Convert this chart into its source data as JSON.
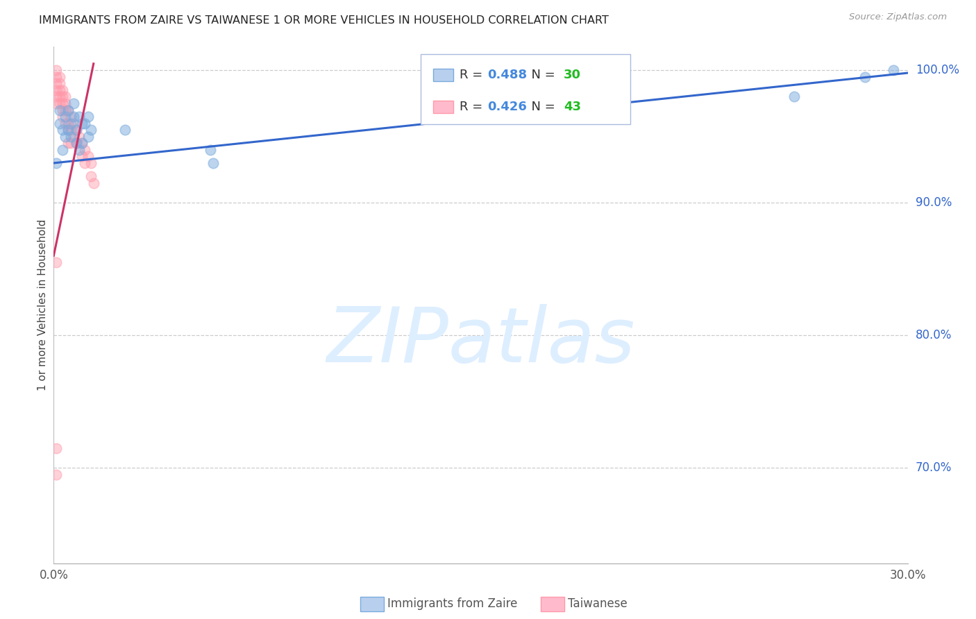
{
  "title": "IMMIGRANTS FROM ZAIRE VS TAIWANESE 1 OR MORE VEHICLES IN HOUSEHOLD CORRELATION CHART",
  "source": "Source: ZipAtlas.com",
  "ylabel": "1 or more Vehicles in Household",
  "xmin": 0.0,
  "xmax": 0.3,
  "ymin": 0.628,
  "ymax": 1.018,
  "yticks": [
    0.7,
    0.8,
    0.9,
    1.0
  ],
  "ytick_labels": [
    "70.0%",
    "80.0%",
    "90.0%",
    "100.0%"
  ],
  "xtick_positions": [
    0.0,
    0.05,
    0.1,
    0.15,
    0.2,
    0.25,
    0.3
  ],
  "xtick_labels": [
    "0.0%",
    "",
    "",
    "",
    "",
    "",
    "30.0%"
  ],
  "grid_color": "#cccccc",
  "background_color": "#ffffff",
  "blue_color": "#7aaadd",
  "pink_color": "#ff99aa",
  "blue_label": "Immigrants from Zaire",
  "pink_label": "Taiwanese",
  "blue_R": 0.488,
  "blue_N": 30,
  "pink_R": 0.426,
  "pink_N": 43,
  "legend_R_color": "#4488dd",
  "legend_N_color": "#22bb22",
  "watermark_text": "ZIPatlas",
  "watermark_color": "#ddeeff",
  "blue_scatter_x": [
    0.001,
    0.002,
    0.002,
    0.003,
    0.003,
    0.004,
    0.004,
    0.005,
    0.005,
    0.006,
    0.006,
    0.007,
    0.007,
    0.008,
    0.008,
    0.009,
    0.009,
    0.01,
    0.01,
    0.011,
    0.012,
    0.012,
    0.013,
    0.025,
    0.055,
    0.056,
    0.135,
    0.26,
    0.285,
    0.295
  ],
  "blue_scatter_y": [
    0.93,
    0.96,
    0.97,
    0.955,
    0.94,
    0.965,
    0.95,
    0.955,
    0.97,
    0.96,
    0.95,
    0.965,
    0.975,
    0.955,
    0.945,
    0.965,
    0.94,
    0.945,
    0.96,
    0.96,
    0.95,
    0.965,
    0.955,
    0.955,
    0.94,
    0.93,
    0.968,
    0.98,
    0.995,
    1.0
  ],
  "pink_scatter_x": [
    0.001,
    0.001,
    0.001,
    0.001,
    0.001,
    0.001,
    0.002,
    0.002,
    0.002,
    0.002,
    0.002,
    0.003,
    0.003,
    0.003,
    0.003,
    0.003,
    0.004,
    0.004,
    0.004,
    0.004,
    0.005,
    0.005,
    0.005,
    0.005,
    0.006,
    0.006,
    0.006,
    0.007,
    0.007,
    0.008,
    0.008,
    0.009,
    0.01,
    0.01,
    0.011,
    0.011,
    0.012,
    0.013,
    0.013,
    0.014,
    0.001,
    0.001,
    0.001
  ],
  "pink_scatter_y": [
    1.0,
    0.995,
    0.99,
    0.985,
    0.98,
    0.975,
    0.995,
    0.99,
    0.985,
    0.98,
    0.975,
    0.985,
    0.98,
    0.975,
    0.97,
    0.965,
    0.98,
    0.975,
    0.97,
    0.96,
    0.97,
    0.96,
    0.955,
    0.945,
    0.965,
    0.955,
    0.945,
    0.96,
    0.95,
    0.955,
    0.945,
    0.95,
    0.945,
    0.935,
    0.94,
    0.93,
    0.935,
    0.93,
    0.92,
    0.915,
    0.855,
    0.715,
    0.695
  ],
  "blue_trend_x": [
    0.0,
    0.3
  ],
  "blue_trend_y": [
    0.93,
    0.998
  ],
  "pink_trend_x": [
    0.0,
    0.014
  ],
  "pink_trend_y": [
    0.86,
    1.005
  ]
}
